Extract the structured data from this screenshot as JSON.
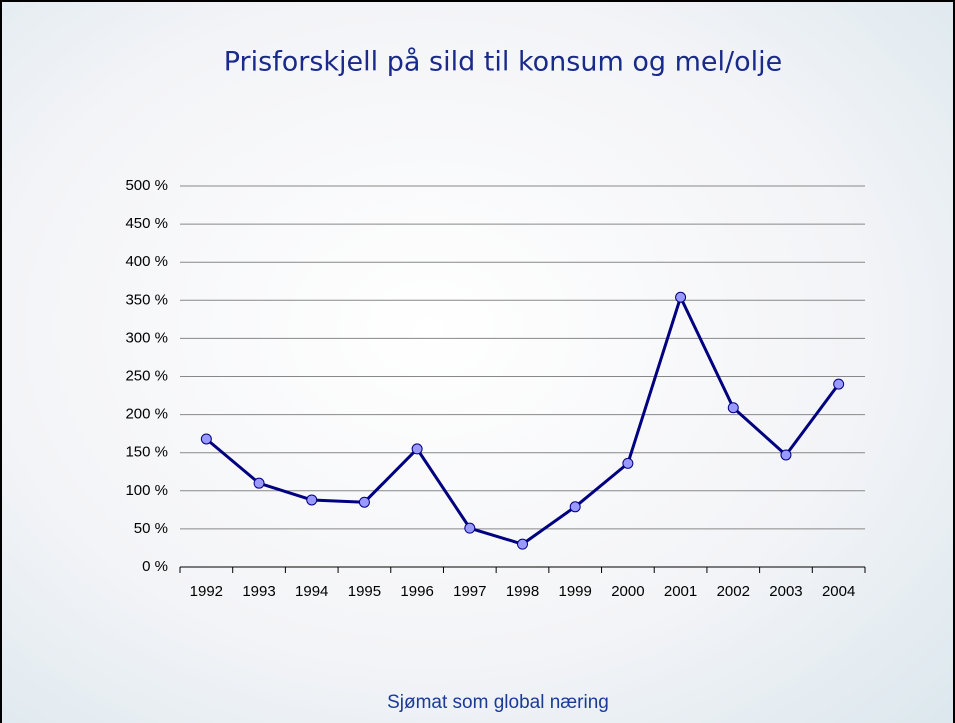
{
  "chart_data": {
    "type": "line",
    "title": "Prisforskjell på sild til konsum og mel/olje",
    "categories": [
      "1992",
      "1993",
      "1994",
      "1995",
      "1996",
      "1997",
      "1998",
      "1999",
      "2000",
      "2001",
      "2002",
      "2003",
      "2004"
    ],
    "values": [
      168,
      110,
      88,
      85,
      155,
      51,
      30,
      79,
      136,
      354,
      209,
      147,
      240
    ],
    "color": "#000080",
    "marker_color": "#9999ff",
    "ylim": [
      0,
      500
    ],
    "yticks": [
      {
        "value": 0,
        "label": "0 %"
      },
      {
        "value": 50,
        "label": "50 %"
      },
      {
        "value": 100,
        "label": "100 %"
      },
      {
        "value": 150,
        "label": "150 %"
      },
      {
        "value": 200,
        "label": "200 %"
      },
      {
        "value": 250,
        "label": "250 %"
      },
      {
        "value": 300,
        "label": "300 %"
      },
      {
        "value": 350,
        "label": "350 %"
      },
      {
        "value": 400,
        "label": "400 %"
      },
      {
        "value": 450,
        "label": "450 %"
      },
      {
        "value": 500,
        "label": "500 %"
      }
    ],
    "grid": true
  },
  "footer": "Sjømat som global næring"
}
